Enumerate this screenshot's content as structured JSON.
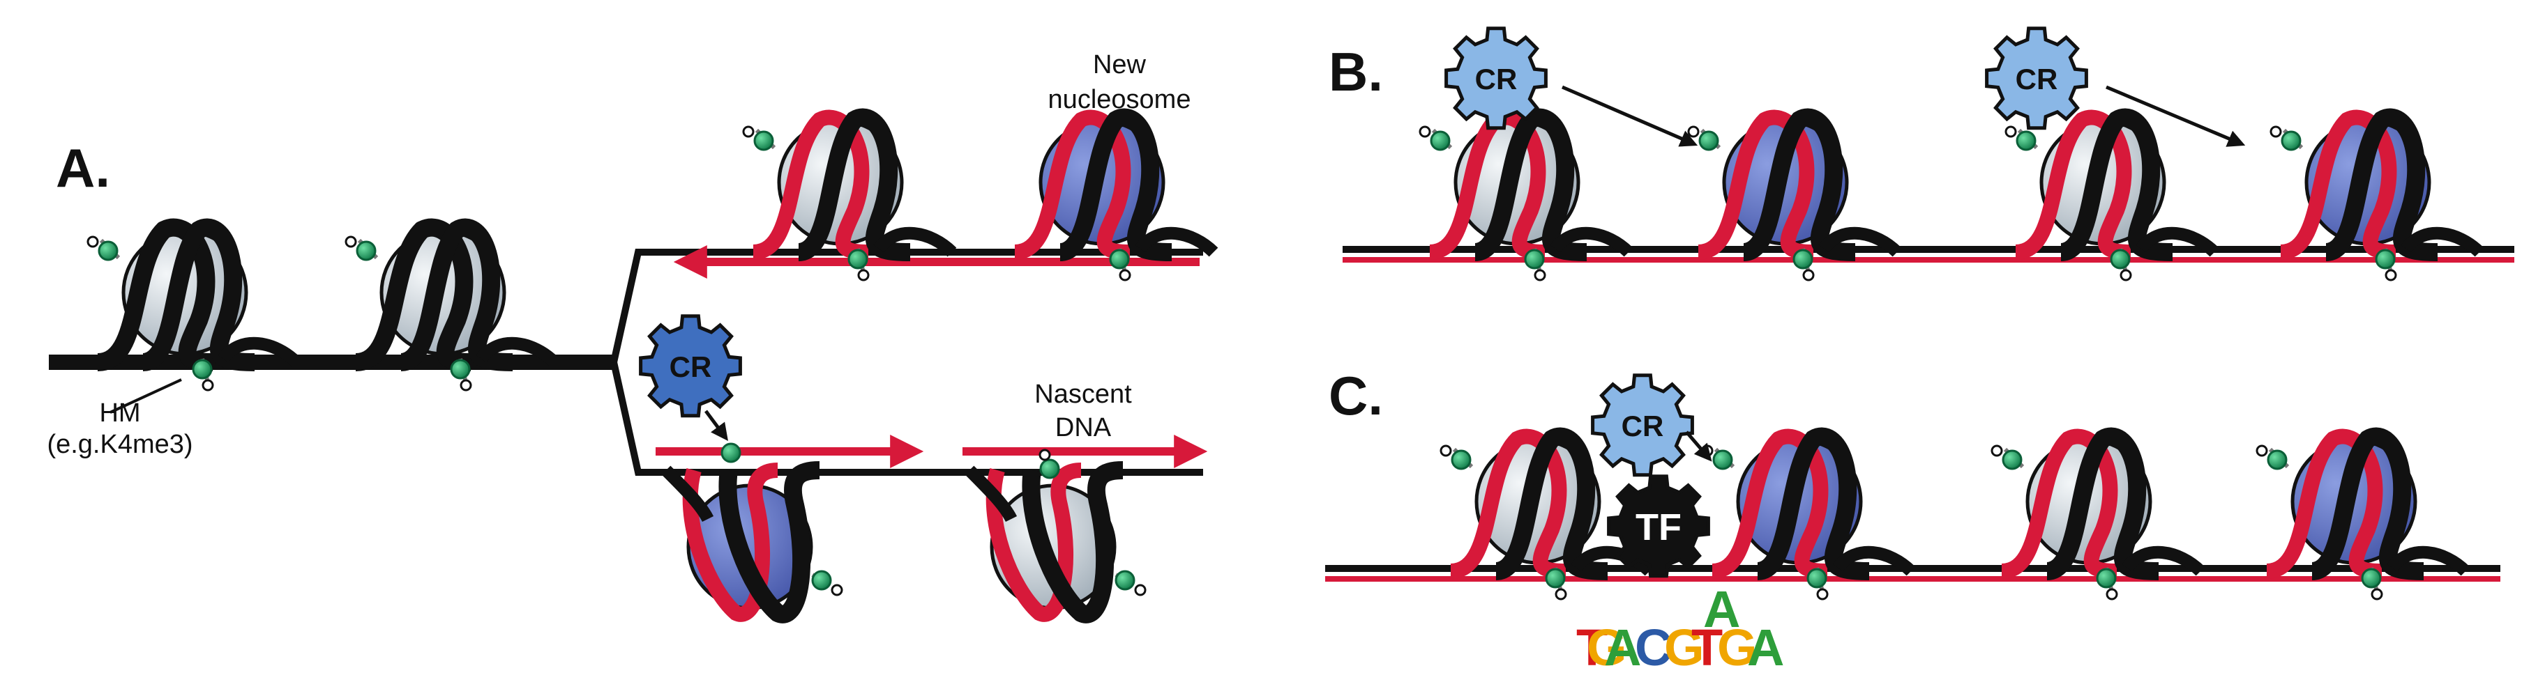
{
  "panels": {
    "a": {
      "letter": "A."
    },
    "b": {
      "letter": "B."
    },
    "c": {
      "letter": "C."
    }
  },
  "labels": {
    "hm_line1": "HM",
    "hm_line2": "(e.g.K4me3)",
    "new_nucleosome_line1": "New",
    "new_nucleosome_line2": "nucleosome",
    "nascent_dna_line1": "Nascent",
    "nascent_dna_line2": "DNA"
  },
  "factors": {
    "cr": "CR",
    "tf": "TF"
  },
  "motif": {
    "letters": [
      "T",
      "G",
      "A",
      "C",
      "G",
      "T",
      "G",
      "A",
      "A"
    ],
    "colors": {
      "A": "#2e9e3a",
      "C": "#2c5aa6",
      "G": "#f0a500",
      "T": "#d7191c"
    }
  },
  "colors": {
    "dna": "#111111",
    "nascent": "#d7193a",
    "old_histone": "#c3cdd4",
    "new_histone": "#5c6fbf",
    "cr_old": "#3f6fbf",
    "cr_new": "#8ab7e6",
    "tf": "#111111",
    "mark": "#1e9e60"
  }
}
